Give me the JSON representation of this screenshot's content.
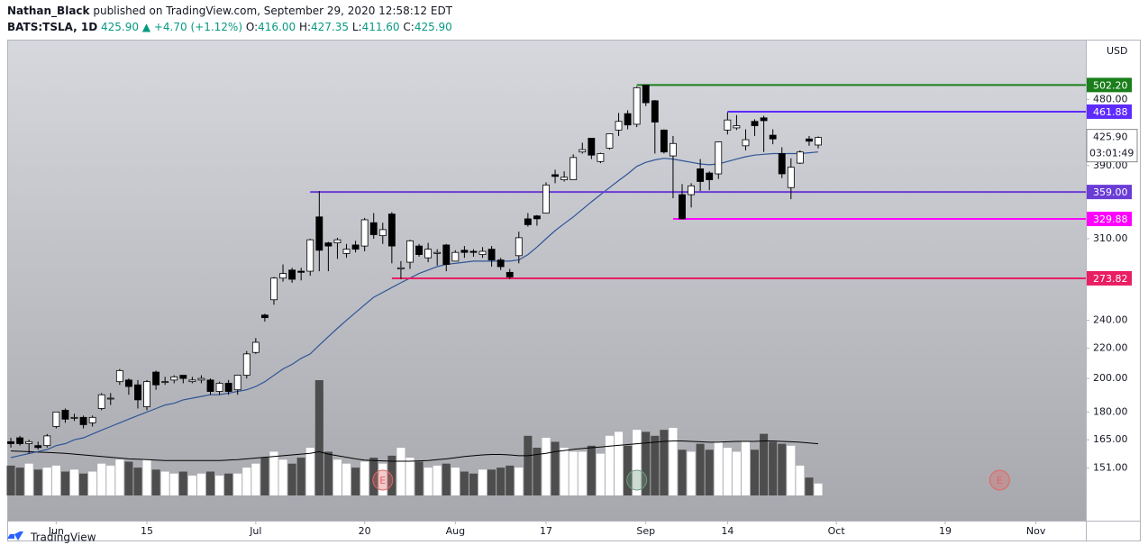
{
  "header": {
    "author": "Nathan_Black",
    "published": "published on TradingView.com, September 29, 2020 12:58:12 EDT",
    "symbol": "BATS:TSLA, 1D",
    "price": "425.90",
    "change": "▲ +4.70 (+1.12%)",
    "ohlc": [
      {
        "key": "O:",
        "value": "416.00"
      },
      {
        "key": "H:",
        "value": "427.35"
      },
      {
        "key": "L:",
        "value": "411.60"
      },
      {
        "key": "C:",
        "value": "425.90"
      }
    ]
  },
  "chart_data": {
    "type": "candlestick",
    "log_scale": true,
    "grid": false,
    "currency": "USD",
    "ylim": [
      128,
      579
    ],
    "yticks": [
      {
        "value": 151,
        "label": "151.00"
      },
      {
        "value": 165,
        "label": "165.00"
      },
      {
        "value": 180,
        "label": "180.00"
      },
      {
        "value": 200,
        "label": "200.00"
      },
      {
        "value": 220,
        "label": "220.00"
      },
      {
        "value": 240,
        "label": "240.00"
      },
      {
        "value": 310,
        "label": "310.00"
      },
      {
        "value": 390,
        "label": "390.00"
      },
      {
        "value": 480,
        "label": "480.00"
      }
    ],
    "xlim": [
      -0.4,
      118.5
    ],
    "xticks": [
      {
        "value": 5,
        "label": "Jun"
      },
      {
        "value": 15,
        "label": "15"
      },
      {
        "value": 27,
        "label": "Jul"
      },
      {
        "value": 39,
        "label": "20"
      },
      {
        "value": 49,
        "label": "Aug"
      },
      {
        "value": 59,
        "label": "17"
      },
      {
        "value": 70,
        "label": "Sep"
      },
      {
        "value": 79,
        "label": "14"
      },
      {
        "value": 91,
        "label": "Oct"
      },
      {
        "value": 103,
        "label": "19"
      },
      {
        "value": 113,
        "label": "Nov"
      }
    ],
    "up_color": "#ffffff",
    "down_color": "#000000",
    "volume_up_color": "#ffffff",
    "volume_down_color": "#4d4d4d",
    "open": [
      164,
      166,
      163,
      162,
      162,
      172,
      181,
      177,
      177,
      174,
      182,
      188,
      198,
      199,
      196,
      183,
      204,
      198,
      199,
      202,
      198,
      199,
      199,
      192,
      197,
      193,
      202,
      217,
      244,
      256,
      274,
      281,
      280,
      280,
      332,
      306,
      306,
      296,
      304,
      303,
      326,
      313,
      335,
      282,
      288,
      303,
      292,
      296,
      304,
      289,
      299,
      298,
      295,
      300,
      290,
      279,
      294,
      330,
      333,
      336,
      379,
      373,
      373,
      407,
      425,
      395,
      412,
      436,
      459,
      444,
      502,
      478,
      436,
      402,
      356,
      356,
      386,
      381,
      380,
      436,
      439,
      415,
      448,
      453,
      429,
      405,
      364,
      393,
      424,
      416
    ],
    "high": [
      166,
      167,
      165,
      164,
      168,
      180,
      182,
      179,
      178,
      178,
      191,
      191,
      206,
      200,
      199,
      199,
      205,
      201,
      202,
      202,
      201,
      202,
      200,
      198,
      199,
      202,
      218,
      227,
      245,
      275,
      286,
      283,
      283,
      310,
      360,
      307,
      311,
      305,
      308,
      331,
      336,
      326,
      337,
      289,
      309,
      305,
      306,
      300,
      305,
      299,
      303,
      300,
      302,
      303,
      292,
      282,
      317,
      336,
      334,
      370,
      385,
      383,
      404,
      419,
      425,
      406,
      431,
      460,
      464,
      500,
      502,
      479,
      437,
      428,
      368,
      369,
      398,
      383,
      420,
      461,
      457,
      437,
      451,
      456,
      437,
      413,
      399,
      409,
      428,
      427.35
    ],
    "low": [
      161,
      162,
      158,
      160,
      161,
      171,
      174,
      175,
      171,
      172,
      181,
      184,
      196,
      190,
      182,
      181,
      193,
      196,
      197,
      197,
      197,
      197,
      190,
      190,
      190,
      190,
      200,
      216,
      239,
      252,
      271,
      270,
      272,
      276,
      280,
      280,
      291,
      292,
      297,
      298,
      310,
      305,
      287,
      273,
      282,
      293,
      288,
      285,
      280,
      289,
      292,
      293,
      292,
      284,
      281,
      273,
      287,
      322,
      323,
      336,
      369,
      371,
      373,
      405,
      398,
      393,
      410,
      428,
      437,
      440,
      470,
      405,
      405,
      352,
      330,
      342,
      360,
      361,
      374,
      430,
      436,
      409,
      428,
      407,
      417,
      375,
      351,
      392,
      415,
      411.6
    ],
    "close": [
      163,
      163,
      164,
      161,
      167,
      180,
      176,
      177,
      173,
      177,
      190,
      188,
      205,
      195,
      187,
      198,
      196,
      198,
      201,
      200,
      199,
      200,
      192,
      197,
      192,
      202,
      216,
      224,
      242,
      274,
      278,
      273,
      279,
      309,
      299,
      303,
      309,
      300,
      300,
      329,
      314,
      319,
      303,
      283,
      308,
      295,
      300,
      297,
      286,
      297,
      297,
      297,
      298,
      290,
      284,
      275,
      311,
      324,
      330,
      367,
      377,
      376,
      400,
      410,
      403,
      405,
      431,
      448,
      443,
      498,
      475,
      447,
      407,
      418,
      330,
      366,
      371,
      373,
      420,
      450,
      442,
      423,
      442,
      449,
      424,
      380,
      388,
      407,
      421,
      425.9
    ],
    "volume": {
      "lim": [
        0,
        290
      ],
      "values": [
        75,
        70,
        80,
        65,
        70,
        75,
        60,
        65,
        55,
        60,
        80,
        75,
        90,
        85,
        70,
        90,
        65,
        60,
        55,
        60,
        50,
        55,
        60,
        50,
        55,
        55,
        70,
        80,
        95,
        110,
        90,
        80,
        95,
        120,
        290,
        110,
        90,
        80,
        70,
        85,
        95,
        80,
        100,
        120,
        95,
        85,
        70,
        75,
        80,
        70,
        60,
        55,
        65,
        65,
        70,
        75,
        70,
        150,
        120,
        145,
        135,
        120,
        110,
        110,
        125,
        105,
        150,
        160,
        125,
        165,
        160,
        150,
        165,
        170,
        115,
        110,
        130,
        115,
        135,
        120,
        110,
        135,
        115,
        155,
        135,
        130,
        125,
        75,
        45,
        30
      ]
    },
    "volume_ma": {
      "color": "#000000",
      "values": [
        112,
        111,
        110,
        109,
        108,
        107,
        106,
        104,
        102,
        100,
        98,
        96,
        94,
        92,
        91,
        90,
        89,
        88,
        88,
        88,
        88,
        88,
        88,
        88,
        89,
        90,
        92,
        94,
        96,
        98,
        100,
        102,
        104,
        106,
        110,
        104,
        100,
        96,
        92,
        89,
        88,
        87,
        86,
        86,
        86,
        87,
        88,
        90,
        92,
        95,
        98,
        100,
        102,
        103,
        103,
        102,
        100,
        100,
        103,
        106,
        110,
        113,
        116,
        118,
        120,
        122,
        124,
        126,
        128,
        130,
        132,
        134,
        136,
        137,
        137,
        136,
        135,
        134,
        134,
        135,
        136,
        136,
        136,
        137,
        137,
        136,
        135,
        134,
        132,
        130
      ]
    },
    "ma": {
      "color": "#2f5597",
      "values": [
        156,
        157,
        158,
        159,
        160,
        162,
        163,
        165,
        166,
        168,
        170,
        172,
        174,
        176,
        178,
        180,
        182,
        184,
        185,
        187,
        188,
        189,
        190,
        190,
        191,
        192,
        193,
        195,
        198,
        202,
        206,
        209,
        213,
        216,
        222,
        228,
        234,
        240,
        246,
        252,
        258,
        262,
        266,
        270,
        274,
        278,
        281,
        284,
        286,
        287,
        288,
        289,
        289,
        289,
        289,
        289,
        290,
        295,
        302,
        310,
        318,
        325,
        332,
        340,
        348,
        356,
        364,
        372,
        380,
        389,
        394,
        397,
        399,
        398,
        396,
        394,
        392,
        391,
        392,
        395,
        398,
        401,
        403,
        404,
        405,
        405,
        405,
        405,
        406,
        407
      ]
    },
    "levels": [
      {
        "value": 502.2,
        "label": "502.20",
        "color": "#1a7f1a",
        "start": 69
      },
      {
        "value": 461.88,
        "label": "461.88",
        "color": "#5e2bff",
        "start": 79
      },
      {
        "value": 359,
        "label": "359.00",
        "color": "#6a3cd6",
        "start": 33
      },
      {
        "value": 329.88,
        "label": "329.88",
        "color": "#ff00ff",
        "start": 73
      },
      {
        "value": 273.82,
        "label": "273.82",
        "color": "#e91e63",
        "start": 42
      }
    ],
    "last": {
      "value": 425.9,
      "label": "425.90",
      "countdown": "03:01:49"
    },
    "events": [
      {
        "x": 41,
        "label": "E",
        "color": "#e06666"
      },
      {
        "x": 69,
        "color": "#6f9a80"
      },
      {
        "x": 109,
        "label": "E",
        "color": "#e06666"
      }
    ]
  },
  "footer": {
    "brand": "TradingView"
  }
}
